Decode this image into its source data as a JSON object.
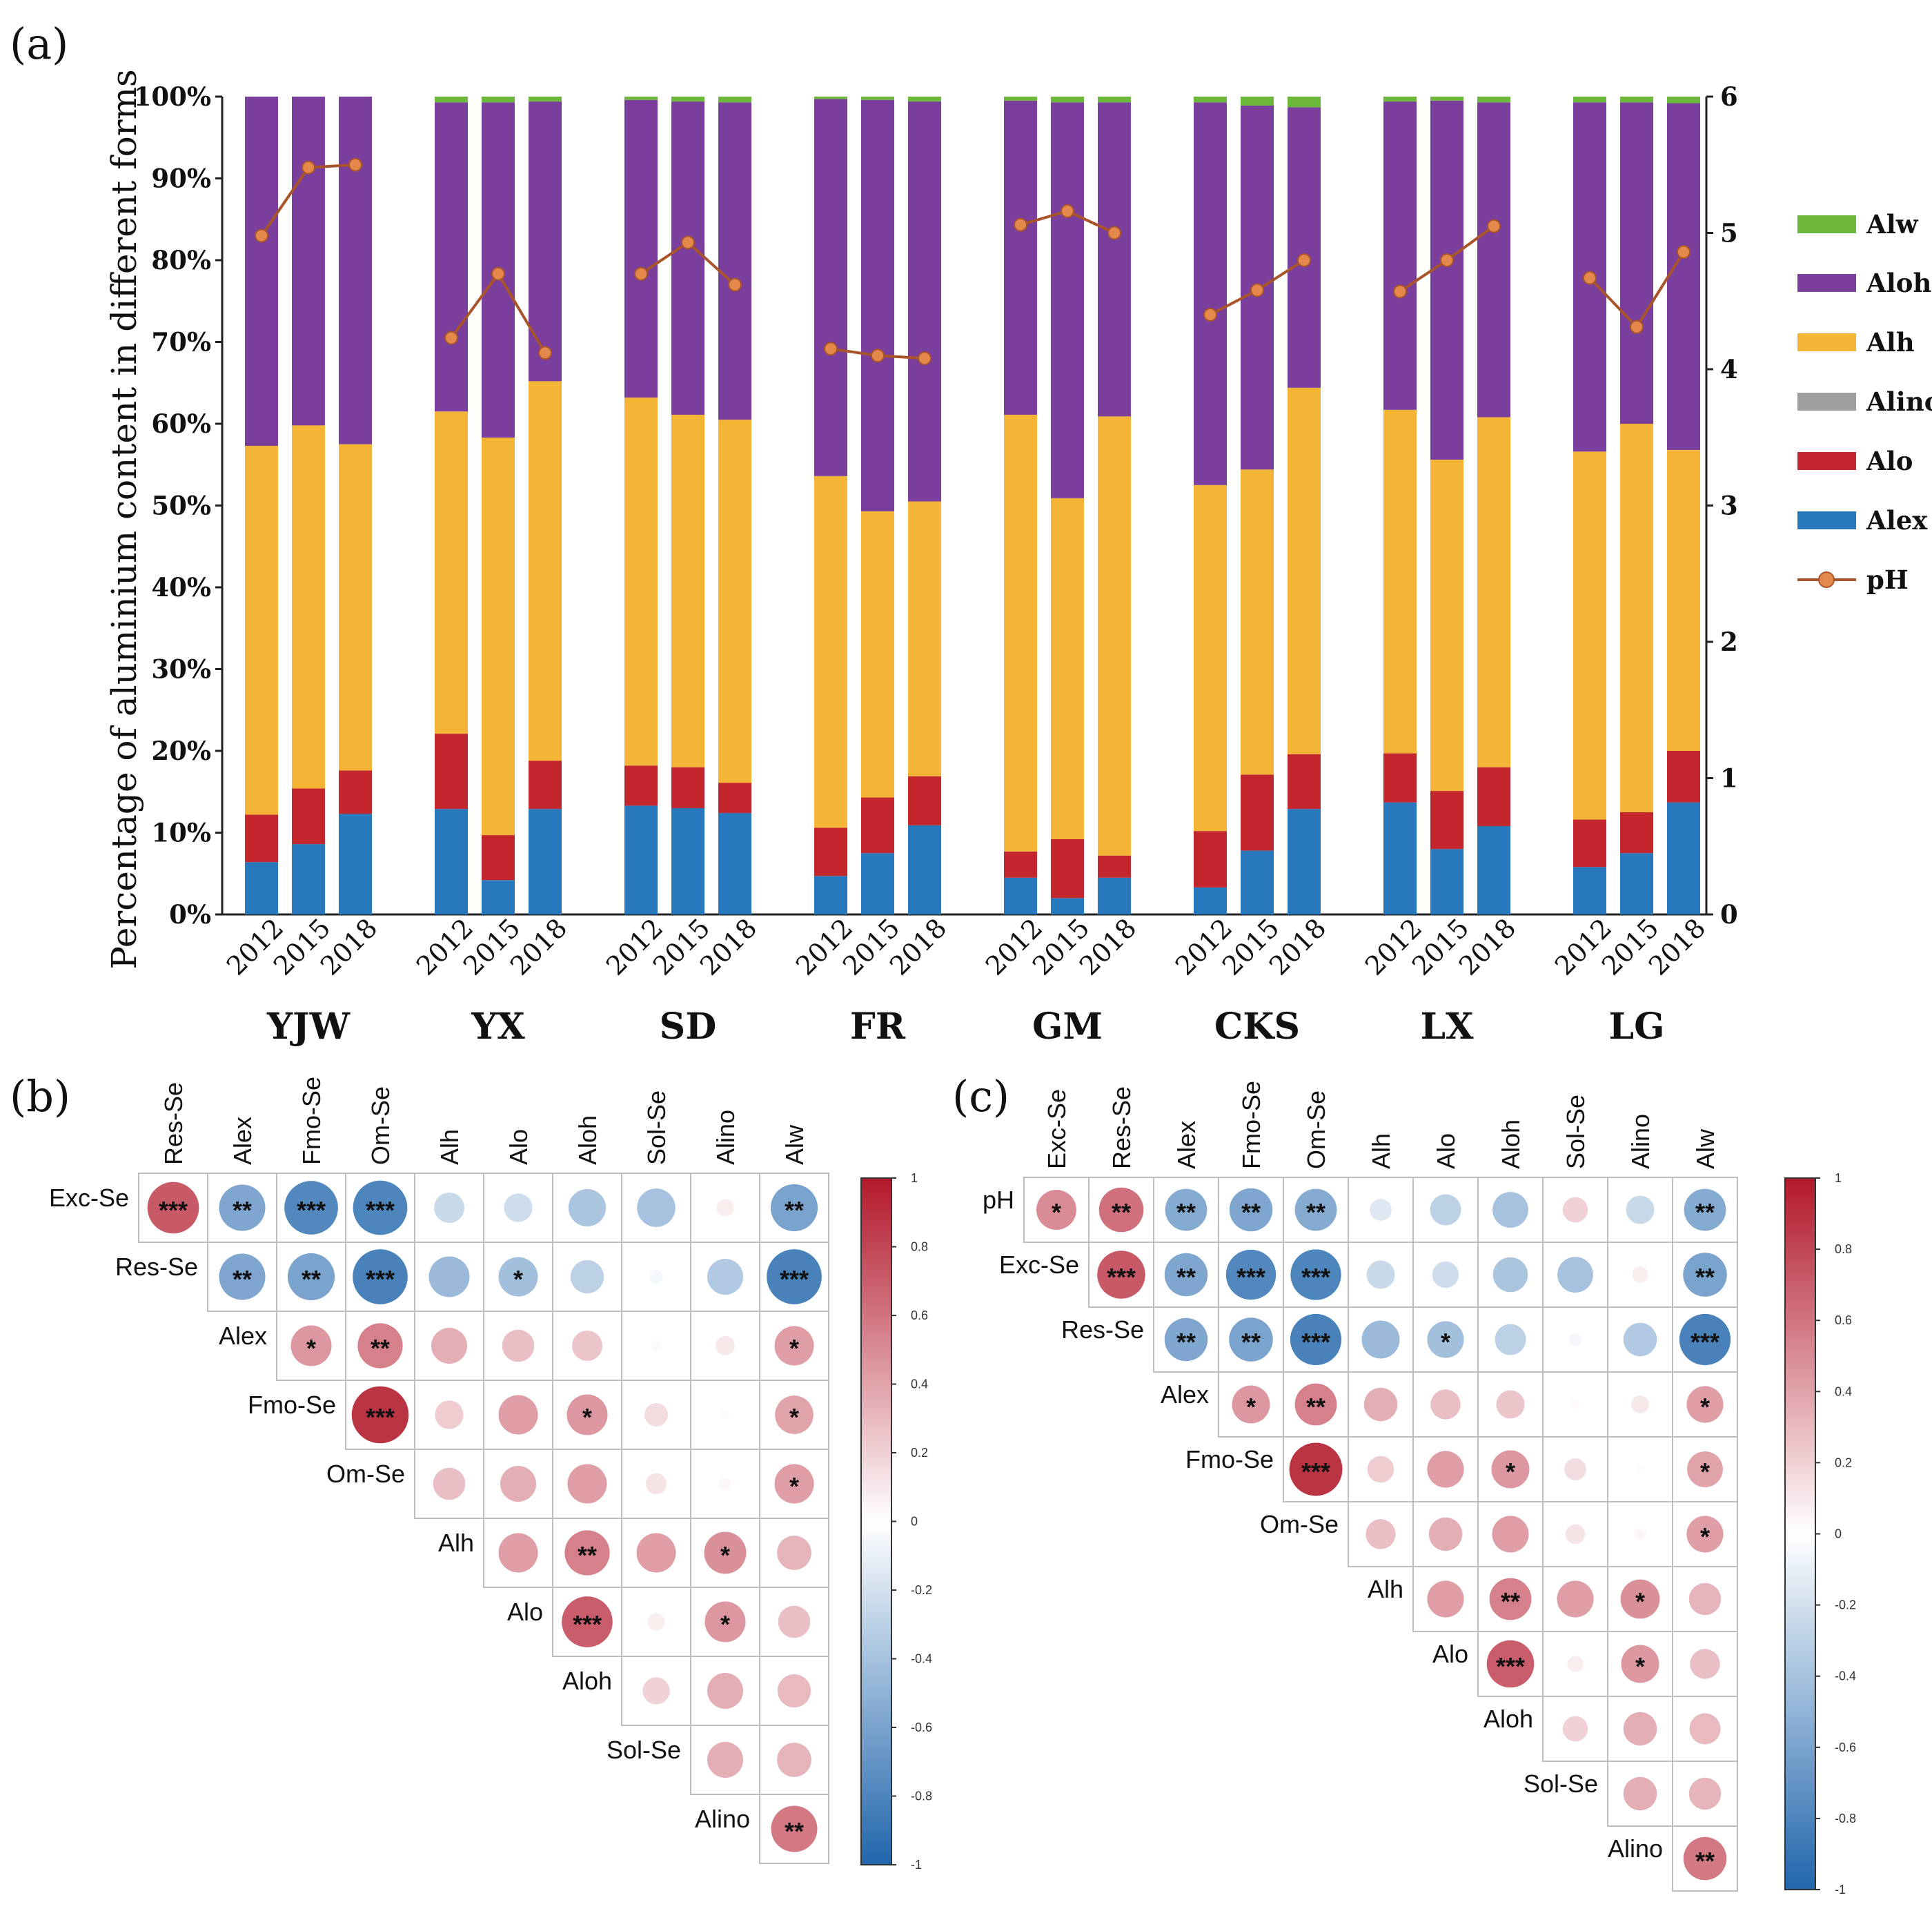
{
  "chart_data": [
    {
      "panel": "(a)",
      "type": "bar",
      "stacked": true,
      "ylabel": "Percentage of aluminium content in different forms",
      "y_ticks": [
        "0%",
        "10%",
        "20%",
        "30%",
        "40%",
        "50%",
        "60%",
        "70%",
        "80%",
        "90%",
        "100%"
      ],
      "ylim": [
        0,
        100
      ],
      "y2_ticks": [
        "0",
        "1",
        "2",
        "3",
        "4",
        "5",
        "6"
      ],
      "y2lim": [
        0,
        6
      ],
      "groups": [
        "YJW",
        "YX",
        "SD",
        "FR",
        "GM",
        "CKS",
        "LX",
        "LG"
      ],
      "years": [
        "2012",
        "2015",
        "2018"
      ],
      "stack_order": [
        "Alex",
        "Alo",
        "Alino",
        "Alh",
        "Aloh",
        "Alw"
      ],
      "colors": {
        "Alex": "#2878BE",
        "Alo": "#C4262E",
        "Alino": "#9E9E9E",
        "Alh": "#F4B536",
        "Aloh": "#7A3F9D",
        "Alw": "#6BB83D",
        "pH": "#A9542A",
        "pH_marker": "#E4884C"
      },
      "legend": [
        "Alw",
        "Aloh",
        "Alh",
        "Alino",
        "Alo",
        "Alex",
        "pH"
      ],
      "series": [
        {
          "name": "Alex",
          "values": [
            [
              6.4,
              8.6,
              12.3
            ],
            [
              12.9,
              4.2,
              12.9
            ],
            [
              13.3,
              13.0,
              12.4
            ],
            [
              4.7,
              7.5,
              10.9
            ],
            [
              4.5,
              2.0,
              4.5
            ],
            [
              3.3,
              7.8,
              12.9
            ],
            [
              13.7,
              8.0,
              10.8
            ],
            [
              5.8,
              7.5,
              13.7
            ]
          ]
        },
        {
          "name": "Alo",
          "values": [
            [
              5.8,
              6.8,
              5.3
            ],
            [
              9.2,
              5.5,
              5.9
            ],
            [
              4.9,
              5.0,
              3.7
            ],
            [
              5.9,
              6.8,
              6.0
            ],
            [
              3.2,
              7.2,
              2.7
            ],
            [
              6.9,
              9.3,
              6.7
            ],
            [
              6.0,
              7.1,
              7.2
            ],
            [
              5.8,
              5.0,
              6.3
            ]
          ]
        },
        {
          "name": "Alino",
          "values": [
            [
              0,
              0,
              0
            ],
            [
              0,
              0,
              0
            ],
            [
              0,
              0,
              0
            ],
            [
              0,
              0,
              0
            ],
            [
              0,
              0,
              0
            ],
            [
              0,
              0,
              0
            ],
            [
              0,
              0,
              0
            ],
            [
              0,
              0,
              0
            ]
          ]
        },
        {
          "name": "Alh",
          "values": [
            [
              45.1,
              44.4,
              39.9
            ],
            [
              39.4,
              48.6,
              46.4
            ],
            [
              45.0,
              43.1,
              44.4
            ],
            [
              43.0,
              35.0,
              33.6
            ],
            [
              53.4,
              41.7,
              53.7
            ],
            [
              42.3,
              37.3,
              44.8
            ],
            [
              42.0,
              40.5,
              42.8
            ],
            [
              45.0,
              47.5,
              36.8
            ]
          ]
        },
        {
          "name": "Aloh",
          "values": [
            [
              42.7,
              40.2,
              42.5
            ],
            [
              37.8,
              41.0,
              34.2
            ],
            [
              36.4,
              38.3,
              38.8
            ],
            [
              46.1,
              50.3,
              48.9
            ],
            [
              38.4,
              48.4,
              38.4
            ],
            [
              46.8,
              44.5,
              34.3
            ],
            [
              37.7,
              43.9,
              38.5
            ],
            [
              42.7,
              39.3,
              42.4
            ]
          ]
        },
        {
          "name": "Alw",
          "values": [
            [
              0,
              0,
              0
            ],
            [
              0.7,
              0.7,
              0.6
            ],
            [
              0.4,
              0.6,
              0.7
            ],
            [
              0.3,
              0.4,
              0.6
            ],
            [
              0.5,
              0.7,
              0.7
            ],
            [
              0.7,
              1.1,
              1.3
            ],
            [
              0.6,
              0.5,
              0.7
            ],
            [
              0.7,
              0.7,
              0.8
            ]
          ]
        }
      ],
      "pH": [
        [
          4.98,
          5.48,
          5.5
        ],
        [
          4.23,
          4.7,
          4.12
        ],
        [
          4.7,
          4.93,
          4.62
        ],
        [
          4.15,
          4.1,
          4.08
        ],
        [
          5.06,
          5.16,
          5.0
        ],
        [
          4.4,
          4.58,
          4.8
        ],
        [
          4.57,
          4.8,
          5.05
        ],
        [
          4.67,
          4.31,
          4.86
        ]
      ]
    },
    {
      "panel": "(b)",
      "type": "heatmap",
      "subtype": "correlation-upper-triangle",
      "columns": [
        "Res-Se",
        "Alex",
        "Fmo-Se",
        "Om-Se",
        "Alh",
        "Alo",
        "Aloh",
        "Sol-Se",
        "Alino",
        "Alw"
      ],
      "rows": [
        "Exc-Se",
        "Res-Se",
        "Alex",
        "Fmo-Se",
        "Om-Se",
        "Alh",
        "Alo",
        "Aloh",
        "Sol-Se",
        "Alino"
      ],
      "colorbar_ticks": [
        "1",
        "0.8",
        "0.6",
        "0.4",
        "0.2",
        "0",
        "-0.2",
        "-0.4",
        "-0.6",
        "-0.8",
        "-1"
      ],
      "values": [
        [
          0.72,
          -0.58,
          -0.78,
          -0.8,
          -0.25,
          -0.22,
          -0.38,
          -0.4,
          0.08,
          -0.6
        ],
        [
          null,
          -0.58,
          -0.6,
          -0.82,
          -0.45,
          -0.42,
          -0.3,
          -0.05,
          -0.35,
          -0.82
        ],
        [
          null,
          null,
          0.45,
          0.55,
          0.35,
          0.28,
          0.25,
          0.03,
          0.1,
          0.42
        ],
        [
          null,
          null,
          null,
          0.88,
          0.22,
          0.42,
          0.45,
          0.15,
          0.02,
          0.4
        ],
        [
          null,
          null,
          null,
          null,
          0.28,
          0.35,
          0.42,
          0.12,
          0.04,
          0.42
        ],
        [
          null,
          null,
          null,
          null,
          null,
          0.42,
          0.55,
          0.42,
          0.48,
          0.32
        ],
        [
          null,
          null,
          null,
          null,
          null,
          null,
          0.7,
          0.08,
          0.45,
          0.28
        ],
        [
          null,
          null,
          null,
          null,
          null,
          null,
          null,
          0.2,
          0.35,
          0.3
        ],
        [
          null,
          null,
          null,
          null,
          null,
          null,
          null,
          null,
          0.35,
          0.32
        ],
        [
          null,
          null,
          null,
          null,
          null,
          null,
          null,
          null,
          null,
          0.58
        ]
      ],
      "stars": [
        [
          "***",
          "**",
          "***",
          "***",
          "",
          "",
          "",
          "",
          "",
          "**"
        ],
        [
          "",
          "**",
          "**",
          "***",
          "",
          "*",
          "",
          "",
          "",
          "***"
        ],
        [
          "",
          "",
          "*",
          "**",
          "",
          "",
          "",
          "",
          "",
          "*"
        ],
        [
          "",
          "",
          "",
          "***",
          "",
          "",
          "*",
          "",
          "",
          "*"
        ],
        [
          "",
          "",
          "",
          "",
          "",
          "",
          "",
          "",
          "",
          "*"
        ],
        [
          "",
          "",
          "",
          "",
          "",
          "",
          "**",
          "",
          "*",
          ""
        ],
        [
          "",
          "",
          "",
          "",
          "",
          "",
          "***",
          "",
          "*",
          ""
        ],
        [
          "",
          "",
          "",
          "",
          "",
          "",
          "",
          "",
          "",
          ""
        ],
        [
          "",
          "",
          "",
          "",
          "",
          "",
          "",
          "",
          "",
          ""
        ],
        [
          "",
          "",
          "",
          "",
          "",
          "",
          "",
          "",
          "",
          "**"
        ]
      ]
    },
    {
      "panel": "(c)",
      "type": "heatmap",
      "subtype": "correlation-upper-triangle",
      "columns": [
        "Exc-Se",
        "Res-Se",
        "Alex",
        "Fmo-Se",
        "Om-Se",
        "Alh",
        "Alo",
        "Aloh",
        "Sol-Se",
        "Alino",
        "Alw"
      ],
      "rows": [
        "pH",
        "Exc-Se",
        "Res-Se",
        "Alex",
        "Fmo-Se",
        "Om-Se",
        "Alh",
        "Alo",
        "Aloh",
        "Sol-Se",
        "Alino"
      ],
      "colorbar_ticks": [
        "1",
        "0.8",
        "0.6",
        "0.4",
        "0.2",
        "0",
        "-0.2",
        "-0.4",
        "-0.6",
        "-0.8",
        "-1"
      ],
      "values": [
        [
          0.5,
          0.62,
          -0.55,
          -0.58,
          -0.55,
          -0.15,
          -0.3,
          -0.4,
          0.2,
          -0.25,
          -0.55
        ],
        [
          null,
          0.72,
          -0.58,
          -0.78,
          -0.8,
          -0.25,
          -0.22,
          -0.38,
          -0.4,
          0.08,
          -0.6
        ],
        [
          null,
          null,
          -0.58,
          -0.6,
          -0.82,
          -0.45,
          -0.42,
          -0.3,
          -0.05,
          -0.35,
          -0.82
        ],
        [
          null,
          null,
          null,
          0.45,
          0.55,
          0.35,
          0.28,
          0.25,
          0.03,
          0.1,
          0.42
        ],
        [
          null,
          null,
          null,
          null,
          0.88,
          0.22,
          0.42,
          0.45,
          0.15,
          0.02,
          0.4
        ],
        [
          null,
          null,
          null,
          null,
          null,
          0.28,
          0.35,
          0.42,
          0.12,
          0.04,
          0.42
        ],
        [
          null,
          null,
          null,
          null,
          null,
          null,
          0.42,
          0.55,
          0.42,
          0.48,
          0.32
        ],
        [
          null,
          null,
          null,
          null,
          null,
          null,
          null,
          0.7,
          0.08,
          0.45,
          0.28
        ],
        [
          null,
          null,
          null,
          null,
          null,
          null,
          null,
          null,
          0.2,
          0.35,
          0.3
        ],
        [
          null,
          null,
          null,
          null,
          null,
          null,
          null,
          null,
          null,
          0.35,
          0.32
        ],
        [
          null,
          null,
          null,
          null,
          null,
          null,
          null,
          null,
          null,
          null,
          0.58
        ]
      ],
      "stars": [
        [
          "*",
          "**",
          "**",
          "**",
          "**",
          "",
          "",
          "",
          "",
          "",
          "**"
        ],
        [
          "",
          "***",
          "**",
          "***",
          "***",
          "",
          "",
          "",
          "",
          "",
          "**"
        ],
        [
          "",
          "",
          "**",
          "**",
          "***",
          "",
          "*",
          "",
          "",
          "",
          "***"
        ],
        [
          "",
          "",
          "",
          "*",
          "**",
          "",
          "",
          "",
          "",
          "",
          "*"
        ],
        [
          "",
          "",
          "",
          "",
          "***",
          "",
          "",
          "*",
          "",
          "",
          "*"
        ],
        [
          "",
          "",
          "",
          "",
          "",
          "",
          "",
          "",
          "",
          "",
          "*"
        ],
        [
          "",
          "",
          "",
          "",
          "",
          "",
          "",
          "**",
          "",
          "*",
          ""
        ],
        [
          "",
          "",
          "",
          "",
          "",
          "",
          "",
          "***",
          "",
          "*",
          ""
        ],
        [
          "",
          "",
          "",
          "",
          "",
          "",
          "",
          "",
          "",
          "",
          ""
        ],
        [
          "",
          "",
          "",
          "",
          "",
          "",
          "",
          "",
          "",
          "",
          ""
        ],
        [
          "",
          "",
          "",
          "",
          "",
          "",
          "",
          "",
          "",
          "",
          "**"
        ]
      ]
    }
  ]
}
